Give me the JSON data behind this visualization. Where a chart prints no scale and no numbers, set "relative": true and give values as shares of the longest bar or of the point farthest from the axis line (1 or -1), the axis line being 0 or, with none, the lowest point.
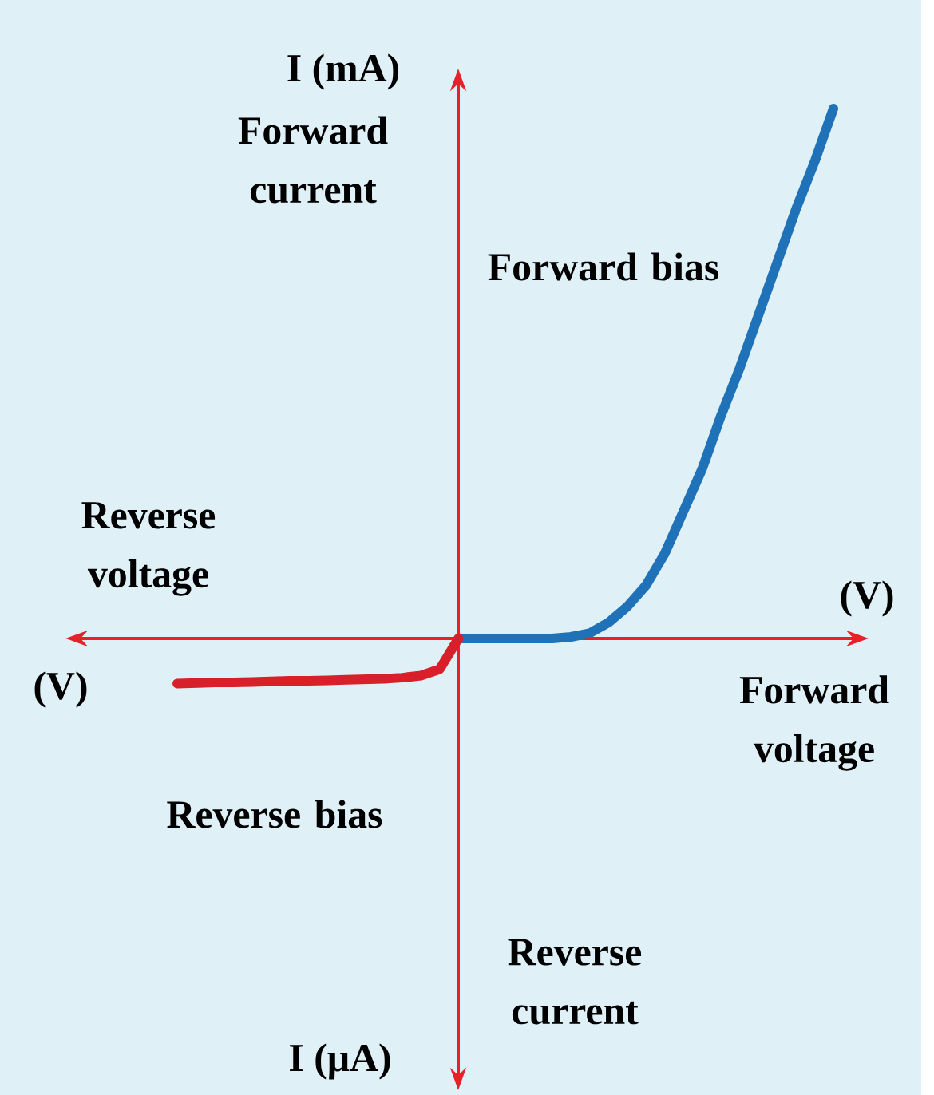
{
  "chart_data": {
    "type": "line",
    "relative": true,
    "xlabel": "(V)",
    "ylabel": "I (mA)",
    "annotations": [
      "Forward current",
      "Forward bias",
      "Reverse voltage",
      "(V)",
      "Forward voltage",
      "Reverse bias",
      "Reverse current",
      "I (μA)"
    ],
    "ref_lines": [
      {
        "axis": "y",
        "value": 0,
        "color": "#e8202a"
      }
    ],
    "categories": [
      null,
      null,
      null,
      null,
      null,
      null,
      null,
      null,
      null,
      null,
      null,
      null,
      null,
      null,
      null,
      null,
      null,
      null,
      null,
      null,
      null,
      null,
      null,
      null,
      null,
      null,
      null,
      null,
      null,
      null,
      null,
      null,
      null,
      null,
      null,
      null
    ],
    "series": [
      {
        "color": "#1f72b8",
        "values": [
          null,
          null,
          null,
          null,
          null,
          null,
          null,
          null,
          null,
          null,
          null,
          null,
          null,
          null,
          null,
          0,
          0,
          0,
          0,
          0,
          0,
          0.003,
          0.01,
          0.03,
          0.06,
          0.1,
          0.16,
          0.24,
          0.32,
          0.42,
          0.51,
          0.61,
          0.71,
          0.81,
          0.9,
          1.0
        ]
      },
      {
        "color": "#d7202a",
        "values": [
          -0.085,
          -0.084,
          -0.083,
          -0.083,
          -0.082,
          -0.081,
          -0.08,
          -0.08,
          -0.079,
          -0.078,
          -0.077,
          -0.076,
          -0.074,
          -0.07,
          -0.058,
          0,
          null,
          null,
          null,
          null,
          null,
          null,
          null,
          null,
          null,
          null,
          null,
          null,
          null,
          null,
          null,
          null,
          null,
          null,
          null,
          null
        ]
      }
    ]
  }
}
